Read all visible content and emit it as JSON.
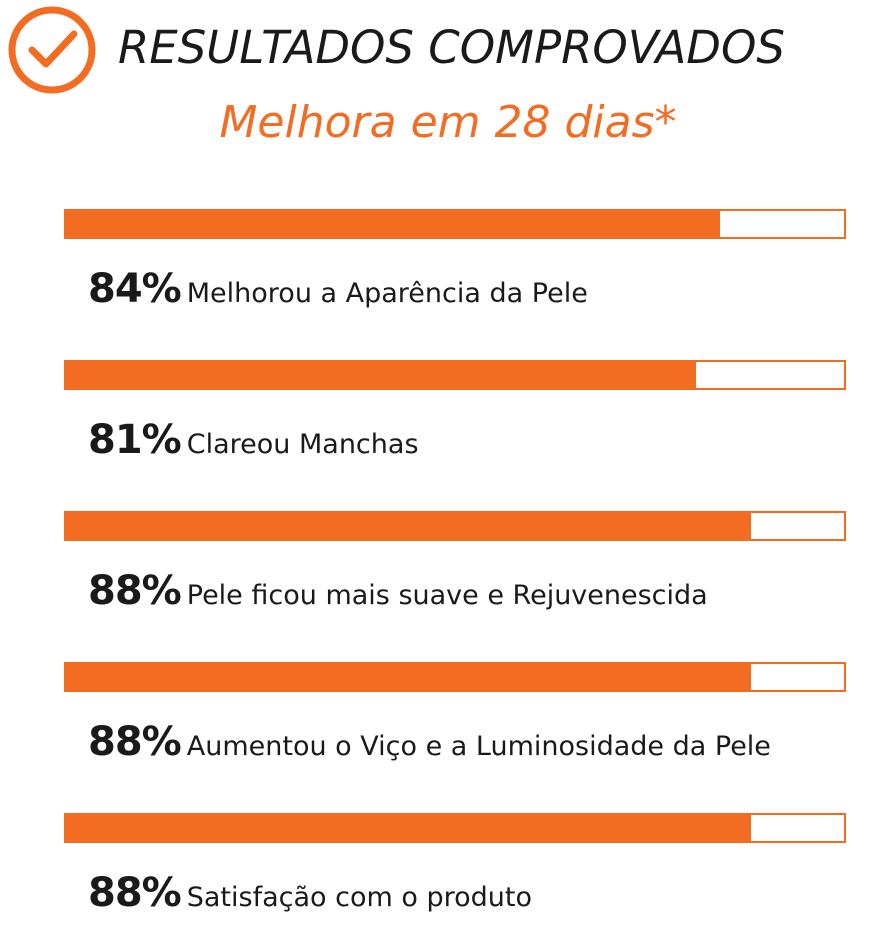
{
  "header": {
    "title": "RESULTADOS COMPROVADOS",
    "subtitle": "Melhora em 28 dias*",
    "badge_icon": "check-circle-icon"
  },
  "colors": {
    "accent": "#f26c22",
    "text": "#1a1a1a",
    "background": "#ffffff"
  },
  "chart_data": {
    "type": "bar",
    "orientation": "horizontal",
    "title": "RESULTADOS COMPROVADOS",
    "subtitle": "Melhora em 28 dias*",
    "xlim": [
      0,
      100
    ],
    "unit": "%",
    "grid": false,
    "categories": [
      "Melhorou a Aparência da Pele",
      "Clareou Manchas",
      "Pele ficou mais suave e Rejuvenescida",
      "Aumentou o Viço e a Luminosidade da Pele",
      "Satisfação com o produto"
    ],
    "values": [
      84,
      81,
      88,
      88,
      88
    ],
    "value_labels": [
      "84%",
      "81%",
      "88%",
      "88%",
      "88%"
    ]
  }
}
